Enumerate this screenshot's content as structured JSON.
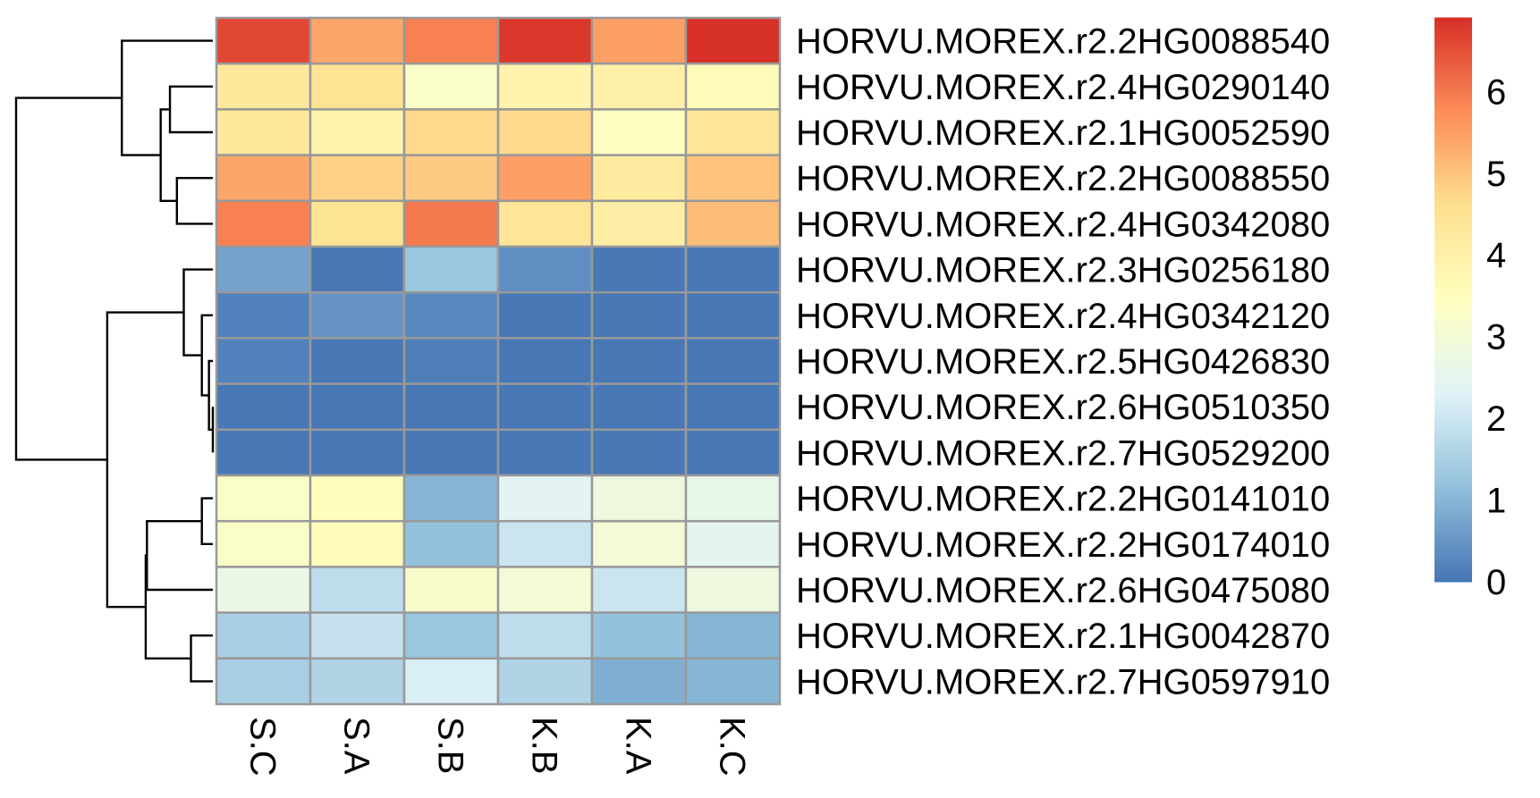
{
  "chart_data": {
    "type": "heatmap",
    "columns": [
      "S.C",
      "S.A",
      "S.B",
      "K.B",
      "K.A",
      "K.C"
    ],
    "rows": [
      "HORVU.MOREX.r2.2HG0088540",
      "HORVU.MOREX.r2.4HG0290140",
      "HORVU.MOREX.r2.1HG0052590",
      "HORVU.MOREX.r2.2HG0088550",
      "HORVU.MOREX.r2.4HG0342080",
      "HORVU.MOREX.r2.3HG0256180",
      "HORVU.MOREX.r2.4HG0342120",
      "HORVU.MOREX.r2.5HG0426830",
      "HORVU.MOREX.r2.6HG0510350",
      "HORVU.MOREX.r2.7HG0529200",
      "HORVU.MOREX.r2.2HG0141010",
      "HORVU.MOREX.r2.2HG0174010",
      "HORVU.MOREX.r2.6HG0475080",
      "HORVU.MOREX.r2.1HG0042870",
      "HORVU.MOREX.r2.7HG0597910"
    ],
    "values": [
      [
        6.6,
        5.4,
        5.9,
        6.8,
        5.5,
        6.9
      ],
      [
        4.3,
        4.5,
        3.3,
        3.9,
        4.0,
        3.6
      ],
      [
        4.3,
        3.9,
        4.7,
        4.7,
        3.4,
        4.4
      ],
      [
        5.4,
        4.8,
        4.9,
        5.5,
        4.2,
        5.0
      ],
      [
        5.9,
        4.5,
        6.0,
        4.4,
        4.1,
        5.1
      ],
      [
        0.7,
        0.05,
        1.3,
        0.4,
        0.05,
        0.05
      ],
      [
        0.2,
        0.5,
        0.3,
        0.05,
        0.05,
        0.05
      ],
      [
        0.2,
        0.05,
        0.15,
        0.05,
        0.05,
        0.05
      ],
      [
        0.05,
        0.05,
        0.05,
        0.05,
        0.05,
        0.05
      ],
      [
        0.05,
        0.05,
        0.05,
        0.05,
        0.05,
        0.05
      ],
      [
        3.3,
        3.5,
        1.0,
        2.4,
        2.8,
        2.6
      ],
      [
        3.3,
        3.6,
        1.2,
        2.0,
        3.0,
        2.5
      ],
      [
        2.7,
        1.8,
        3.2,
        3.0,
        2.0,
        2.8
      ],
      [
        1.5,
        1.9,
        1.3,
        1.8,
        1.2,
        1.0
      ],
      [
        1.5,
        1.6,
        2.2,
        1.6,
        0.9,
        1.0
      ]
    ],
    "colorbar": {
      "min": 0,
      "max": 6.9,
      "ticks": [
        0,
        1,
        2,
        3,
        4,
        5,
        6
      ],
      "colors": [
        "#4575b4",
        "#91bfdb",
        "#e0f3f8",
        "#ffffbf",
        "#fee090",
        "#fc8d59",
        "#d73027"
      ]
    },
    "cell_border_color": "#999999",
    "row_dendrogram": true,
    "column_dendrogram": false
  }
}
